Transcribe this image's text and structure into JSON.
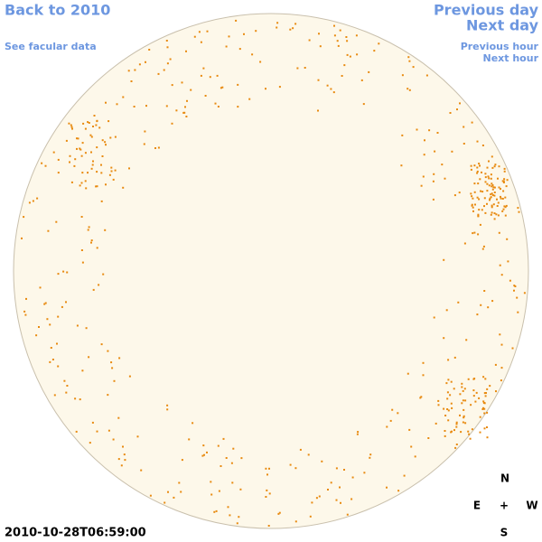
{
  "nav": {
    "back": "Back to 2010",
    "facular": "See facular data",
    "previous_day": "Previous day",
    "next_day": "Next day",
    "previous_hour": "Previous hour",
    "next_hour": "Next hour"
  },
  "compass": {
    "north": "N",
    "east": "E",
    "center": "+",
    "west": "W",
    "south": "S"
  },
  "timestamp": "2010-10-28T06:59:00"
}
